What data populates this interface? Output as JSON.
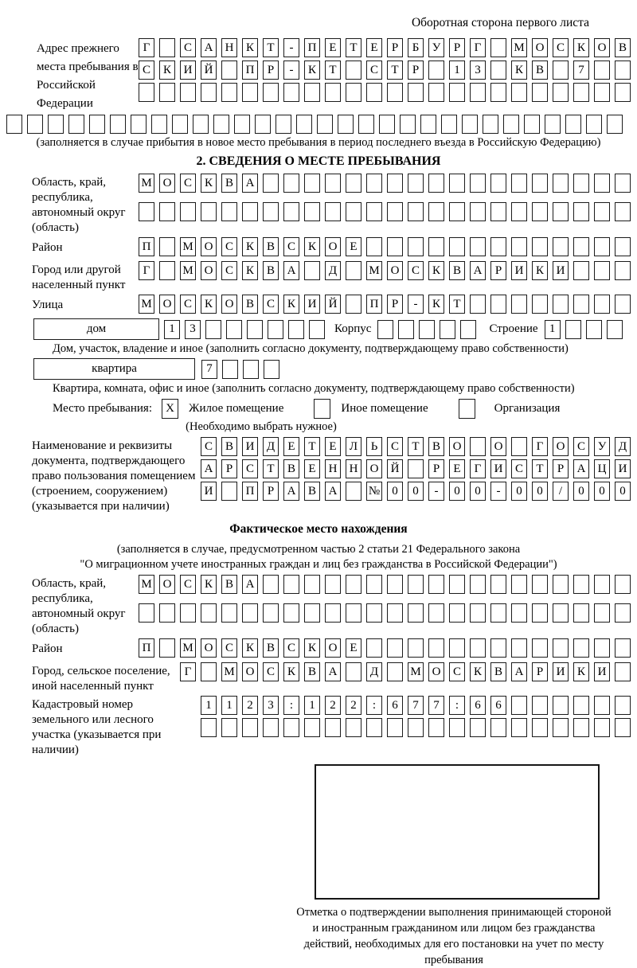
{
  "page": {
    "header_note": "Оборотная сторона первого листа"
  },
  "prev_address": {
    "label": "Адрес прежнего места пребывания в Российской Федерации",
    "rows": [
      "Г САНКТ-ПЕТЕРБУРГ МОСКОВ",
      "СКИЙ ПР-КТ СТР 13 КВ 7  ",
      "                        "
    ],
    "full_row": "                              ",
    "note": "(заполняется в случае прибытия в новое место пребывания в период последнего въезда в Российскую Федерацию)"
  },
  "section2": {
    "title": "2. СВЕДЕНИЯ О МЕСТЕ ПРЕБЫВАНИЯ",
    "region": {
      "label": "Область, край, республика, автономный округ (область)",
      "rows": [
        "МОСКВА                  ",
        "                        "
      ]
    },
    "district": {
      "label": "Район",
      "row": "П МОСКВСКОЕ             "
    },
    "city": {
      "label": "Город или другой населенный пункт",
      "row": "Г МОСКВА Д МОСКВАРИКИ   "
    },
    "street": {
      "label": "Улица",
      "row": "МОСКОВСКИЙ ПР-КТ        "
    },
    "house": {
      "box_label": "дом",
      "cells": "13      ",
      "korpus_label": "Корпус",
      "korpus_cells": "     ",
      "stroenie_label": "Строение",
      "stroenie_cells": "1   ",
      "caption": "Дом, участок, владение и иное (заполнить согласно документу, подтверждающему право собственности)"
    },
    "apartment": {
      "box_label": "квартира",
      "cells": "7   ",
      "caption": "Квартира, комната, офис и иное (заполнить согласно документу, подтверждающему право собственности)"
    },
    "stay_type": {
      "label": "Место пребывания:",
      "options": [
        {
          "label": "Жилое помещение",
          "value": "X"
        },
        {
          "label": "Иное помещение",
          "value": " "
        },
        {
          "label": "Организация",
          "value": " "
        }
      ],
      "note": "(Необходимо выбрать нужное)"
    },
    "document": {
      "label": "Наименование и реквизиты документа, подтверждающего право пользования помещением (строением, сооружением) (указывается при наличии)",
      "rows": [
        "СВИДЕТЕЛЬСТВО О ГОСУД",
        "АРСТВЕННОЙ РЕГИСТРАЦИ",
        "И ПРАВА №00-00-00/000"
      ]
    }
  },
  "actual_location": {
    "title": "Фактическое место нахождения",
    "note_line1": "(заполняется в случае, предусмотренном частью 2 статьи 21 Федерального закона",
    "note_line2": "\"О миграционном учете иностранных граждан и лиц без гражданства в Российской Федерации\")",
    "region": {
      "label": "Область, край, республика, автономный округ (область)",
      "rows": [
        "МОСКВА                  ",
        "                        "
      ]
    },
    "district": {
      "label": "Район",
      "row": "П МОСКВСКОЕ             "
    },
    "city": {
      "label": "Город, сельское поселение, иной населенный пункт",
      "row": "Г МОСКВА Д МОСКВАРИКИ "
    },
    "cadastral": {
      "label": "Кадастровый номер земельного или лесного участка (указывается при наличии)",
      "rows": [
        "1123:122:677:66      ",
        "                     "
      ]
    }
  },
  "footer": {
    "stamp_caption": "Отметка о подтверждении выполнения принимающей стороной и иностранным гражданином или лицом без гражданства действий, необходимых для его постановки на учет по месту пребывания"
  }
}
